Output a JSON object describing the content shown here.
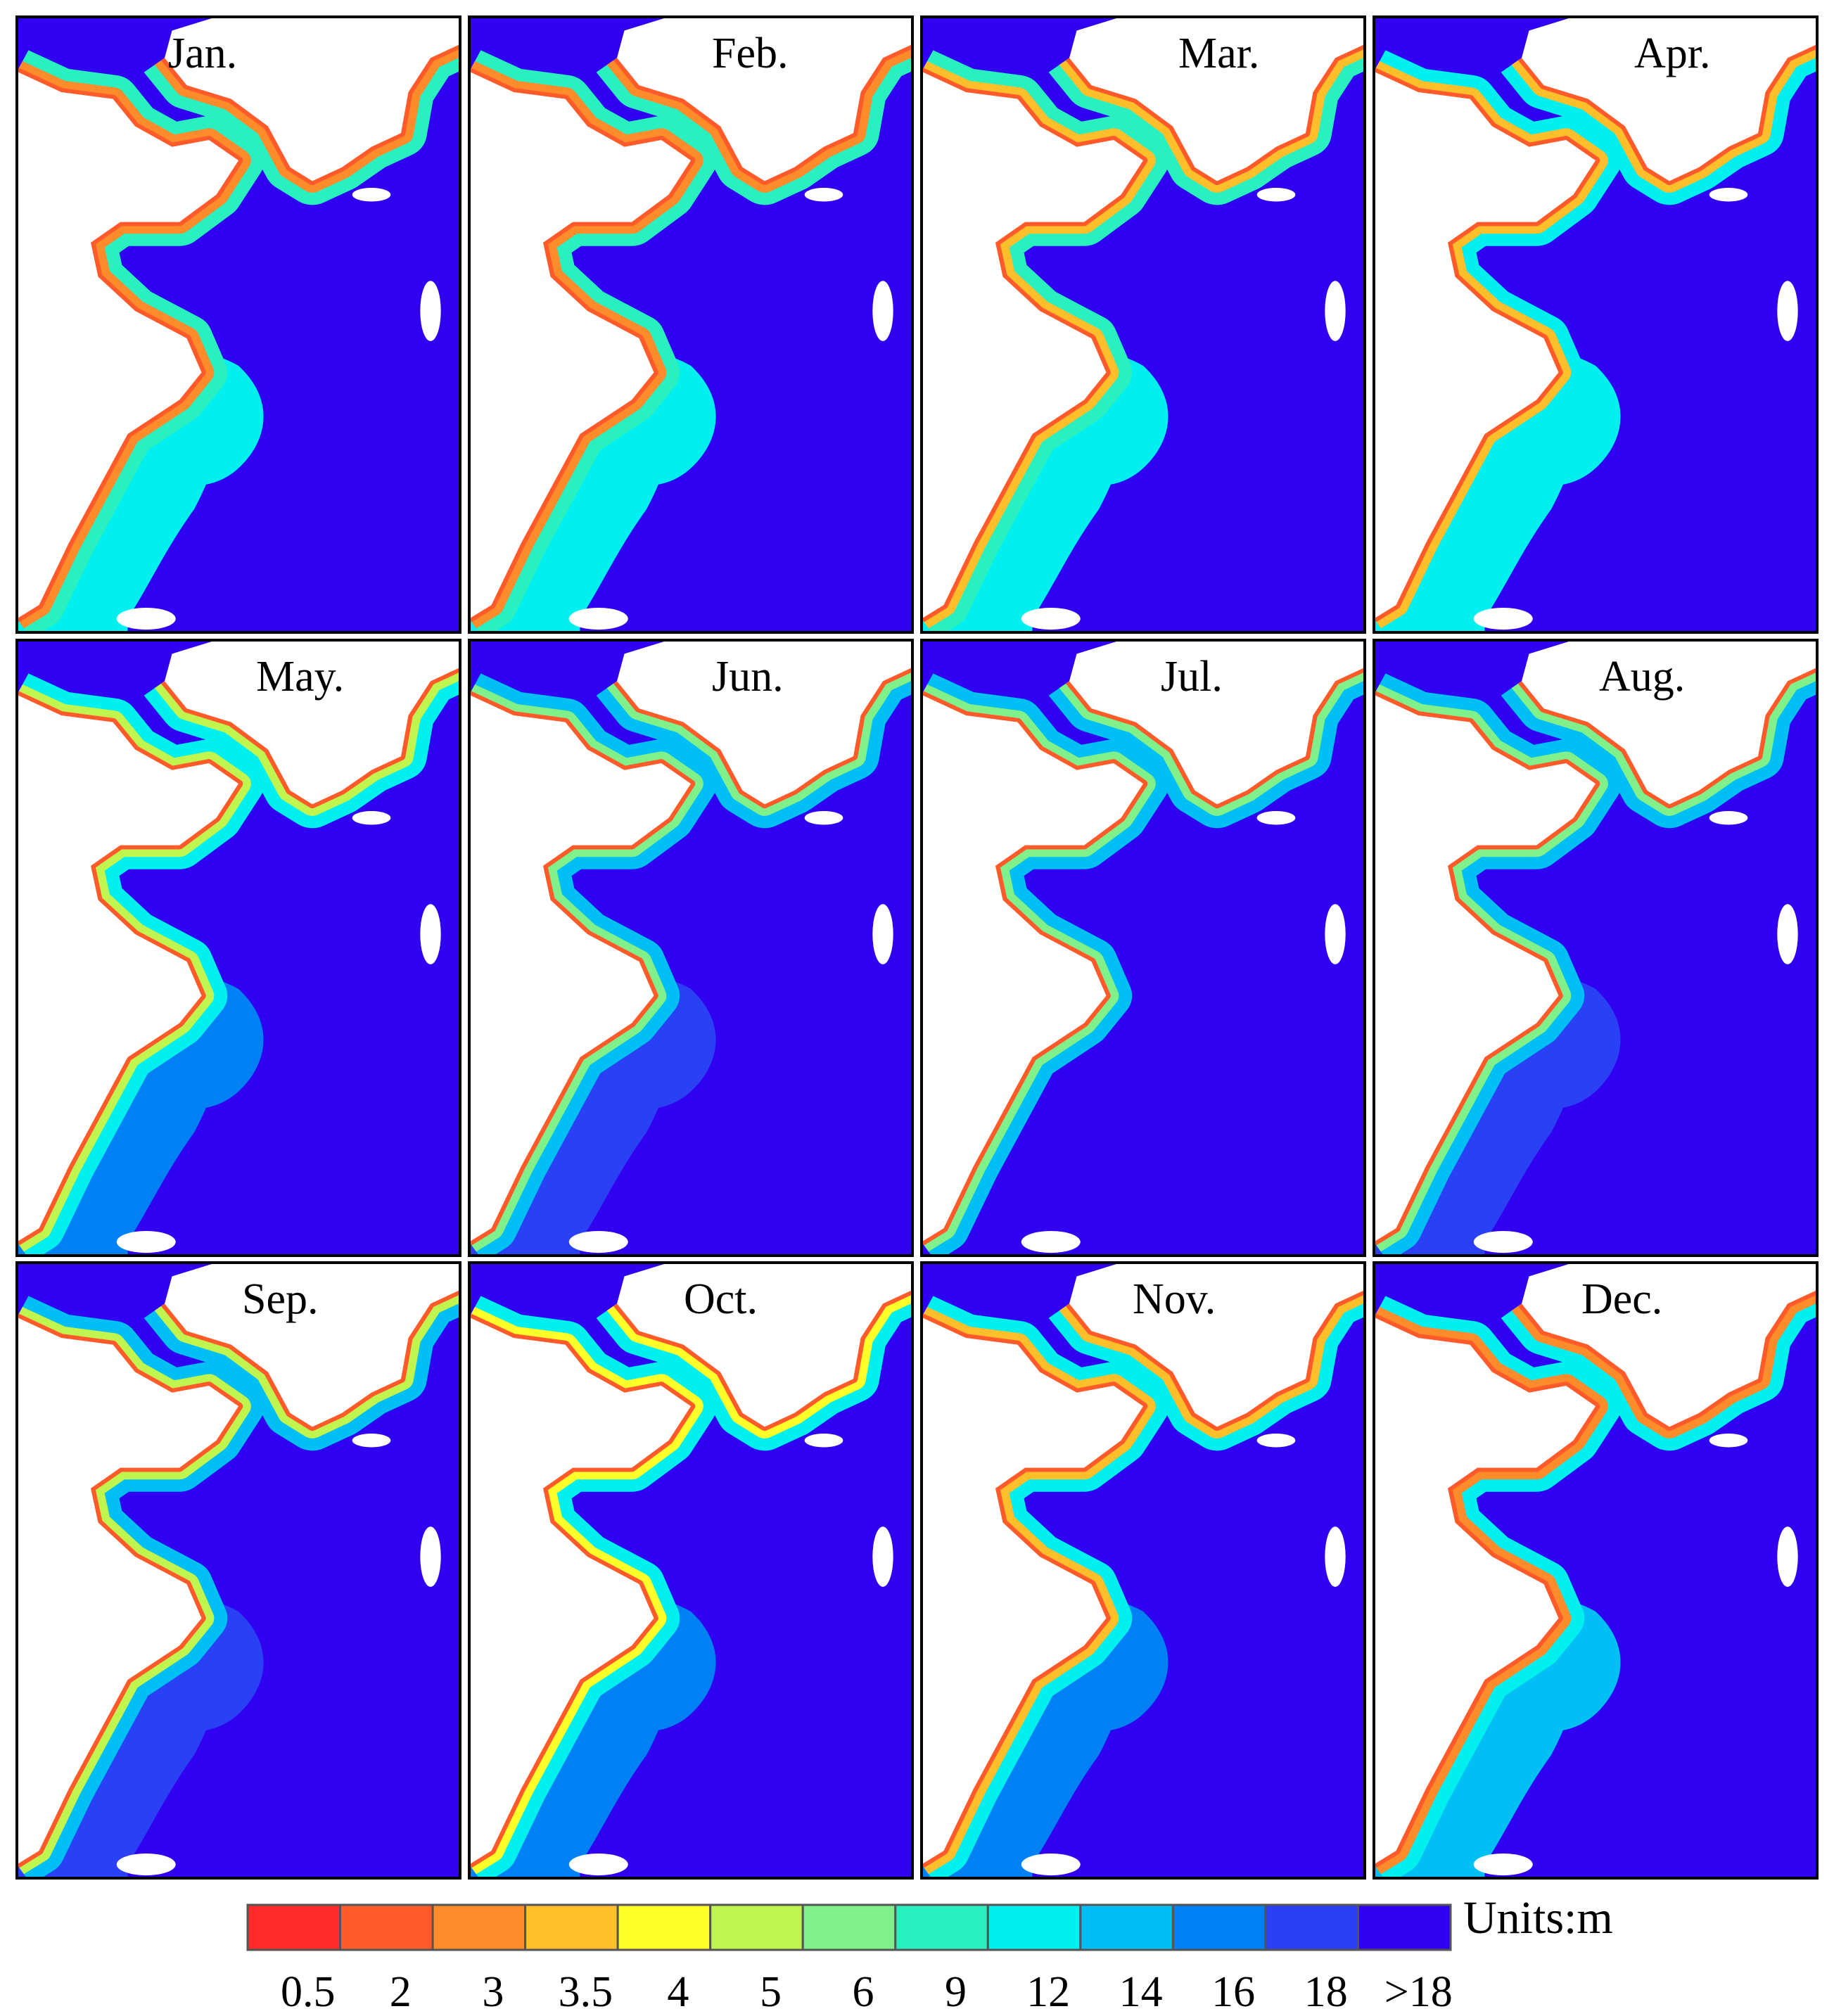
{
  "figure": {
    "months": [
      "Jan.",
      "Feb.",
      "Mar.",
      "Apr.",
      "May.",
      "Jun.",
      "Jul.",
      "Aug.",
      "Sep.",
      "Oct.",
      "Nov.",
      "Dec."
    ],
    "colors": {
      "land": "#ffffff",
      "deep_water": "#3000f0",
      "frame": "#000000"
    }
  },
  "legend": {
    "unit_label": "Units:m",
    "ticks": [
      "0.5",
      "2",
      "3",
      "3.5",
      "4",
      "5",
      "6",
      "9",
      "12",
      "14",
      "16",
      "18",
      ">18"
    ],
    "colors": [
      "#ff2a2a",
      "#ff5a2a",
      "#ff8c2a",
      "#ffbf2a",
      "#ffff2a",
      "#c0f550",
      "#80f08a",
      "#2af0c0",
      "#00f0f0",
      "#00bff5",
      "#0080f5",
      "#2a40f5",
      "#3000f0"
    ]
  }
}
